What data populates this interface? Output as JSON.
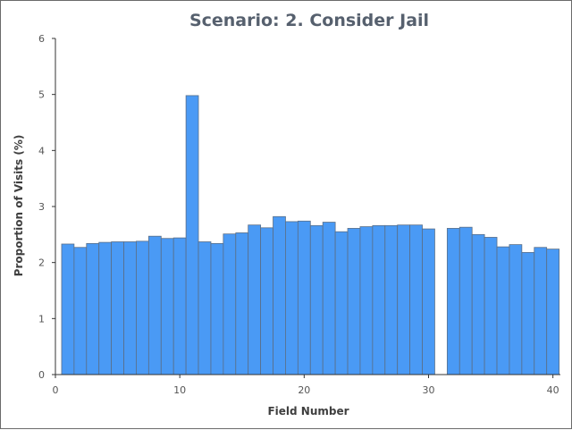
{
  "chart_data": {
    "type": "bar",
    "title": "Scenario: 2. Consider Jail",
    "xlabel": "Field Number",
    "ylabel": "Proportion of Visits (%)",
    "xlim": [
      0,
      40.6
    ],
    "ylim": [
      0,
      6
    ],
    "x_ticks": [
      "0",
      "10",
      "20",
      "30",
      "40"
    ],
    "y_ticks": [
      "0",
      "1",
      "2",
      "3",
      "4",
      "5",
      "6"
    ],
    "grid": false,
    "bar_color": "#4a9af5",
    "x": [
      1,
      2,
      3,
      4,
      5,
      6,
      7,
      8,
      9,
      10,
      11,
      12,
      13,
      14,
      15,
      16,
      17,
      18,
      19,
      20,
      21,
      22,
      23,
      24,
      25,
      26,
      27,
      28,
      29,
      30,
      31,
      32,
      33,
      34,
      35,
      36,
      37,
      38,
      39,
      40
    ],
    "values": [
      2.33,
      2.27,
      2.34,
      2.36,
      2.37,
      2.37,
      2.38,
      2.47,
      2.43,
      2.44,
      4.98,
      2.37,
      2.34,
      2.51,
      2.53,
      2.67,
      2.62,
      2.82,
      2.73,
      2.74,
      2.66,
      2.72,
      2.55,
      2.61,
      2.64,
      2.66,
      2.66,
      2.67,
      2.67,
      2.6,
      0,
      2.61,
      2.63,
      2.5,
      2.45,
      2.28,
      2.32,
      2.18,
      2.27,
      2.24
    ]
  }
}
